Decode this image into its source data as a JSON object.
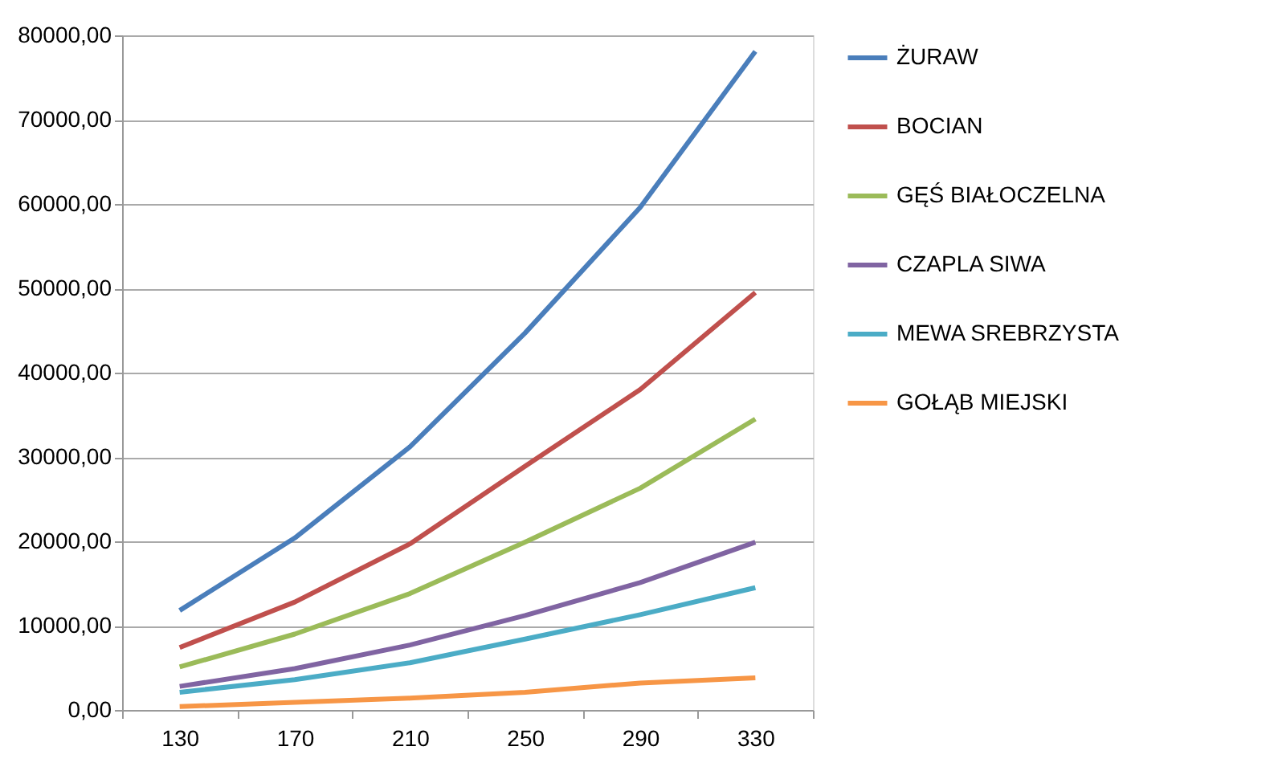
{
  "chart_data": {
    "type": "line",
    "categories": [
      "130",
      "170",
      "210",
      "250",
      "290",
      "330"
    ],
    "series": [
      {
        "name": "ŻURAW",
        "color": "#4a7ebb",
        "values": [
          11800,
          20400,
          31200,
          44700,
          59600,
          78100
        ]
      },
      {
        "name": "BOCIAN",
        "color": "#c0504d",
        "values": [
          7400,
          12800,
          19700,
          28900,
          38000,
          49500
        ]
      },
      {
        "name": "GĘŚ BIAŁOCZELNA",
        "color": "#9bbb59",
        "values": [
          5100,
          9000,
          13800,
          19900,
          26300,
          34500
        ]
      },
      {
        "name": "CZAPLA SIWA",
        "color": "#8064a2",
        "values": [
          2800,
          4900,
          7700,
          11200,
          15100,
          19900
        ]
      },
      {
        "name": "MEWA SREBRZYSTA",
        "color": "#4bacc6",
        "values": [
          2100,
          3600,
          5600,
          8400,
          11300,
          14500
        ]
      },
      {
        "name": "GOŁĄB MIEJSKI",
        "color": "#f79646",
        "values": [
          400,
          900,
          1400,
          2100,
          3200,
          3800
        ]
      }
    ],
    "ylim": [
      0,
      80000
    ],
    "yticks": [
      {
        "value": 0,
        "label": "0,00"
      },
      {
        "value": 10000,
        "label": "10000,00"
      },
      {
        "value": 20000,
        "label": "20000,00"
      },
      {
        "value": 30000,
        "label": "30000,00"
      },
      {
        "value": 40000,
        "label": "40000,00"
      },
      {
        "value": 50000,
        "label": "50000,00"
      },
      {
        "value": 60000,
        "label": "60000,00"
      },
      {
        "value": 70000,
        "label": "70000,00"
      },
      {
        "value": 80000,
        "label": "80000,00"
      }
    ],
    "grid": "y",
    "legend": "right",
    "marker": "none",
    "line_style": "solid"
  }
}
